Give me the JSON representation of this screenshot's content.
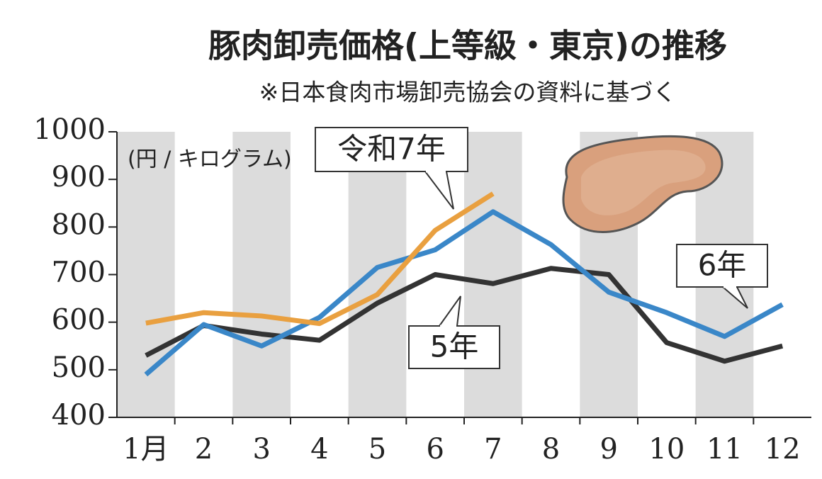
{
  "chart_data": {
    "type": "line",
    "title": "豚肉卸売価格(上等級・東京)の推移",
    "subtitle": "※日本食肉市場卸売協会の資料に基づく",
    "y_label": "(円 / キログラム)",
    "categories": [
      "1月",
      "2",
      "3",
      "4",
      "5",
      "6",
      "7",
      "8",
      "9",
      "10",
      "11",
      "12"
    ],
    "series": [
      {
        "name": "5年",
        "color": "#333333",
        "values": [
          530,
          593,
          575,
          562,
          640,
          700,
          681,
          713,
          700,
          557,
          518,
          550
        ]
      },
      {
        "name": "6年",
        "color": "#3a87c8",
        "values": [
          490,
          595,
          550,
          610,
          715,
          752,
          832,
          763,
          663,
          620,
          570,
          637
        ]
      },
      {
        "name": "令和7年",
        "color": "#e9a040",
        "values": [
          598,
          620,
          613,
          597,
          658,
          793,
          870,
          null,
          null,
          null,
          null,
          null
        ]
      }
    ],
    "ylim": [
      400,
      1000
    ],
    "yticks": [
      400,
      500,
      600,
      700,
      800,
      900,
      1000
    ],
    "grid": false
  }
}
